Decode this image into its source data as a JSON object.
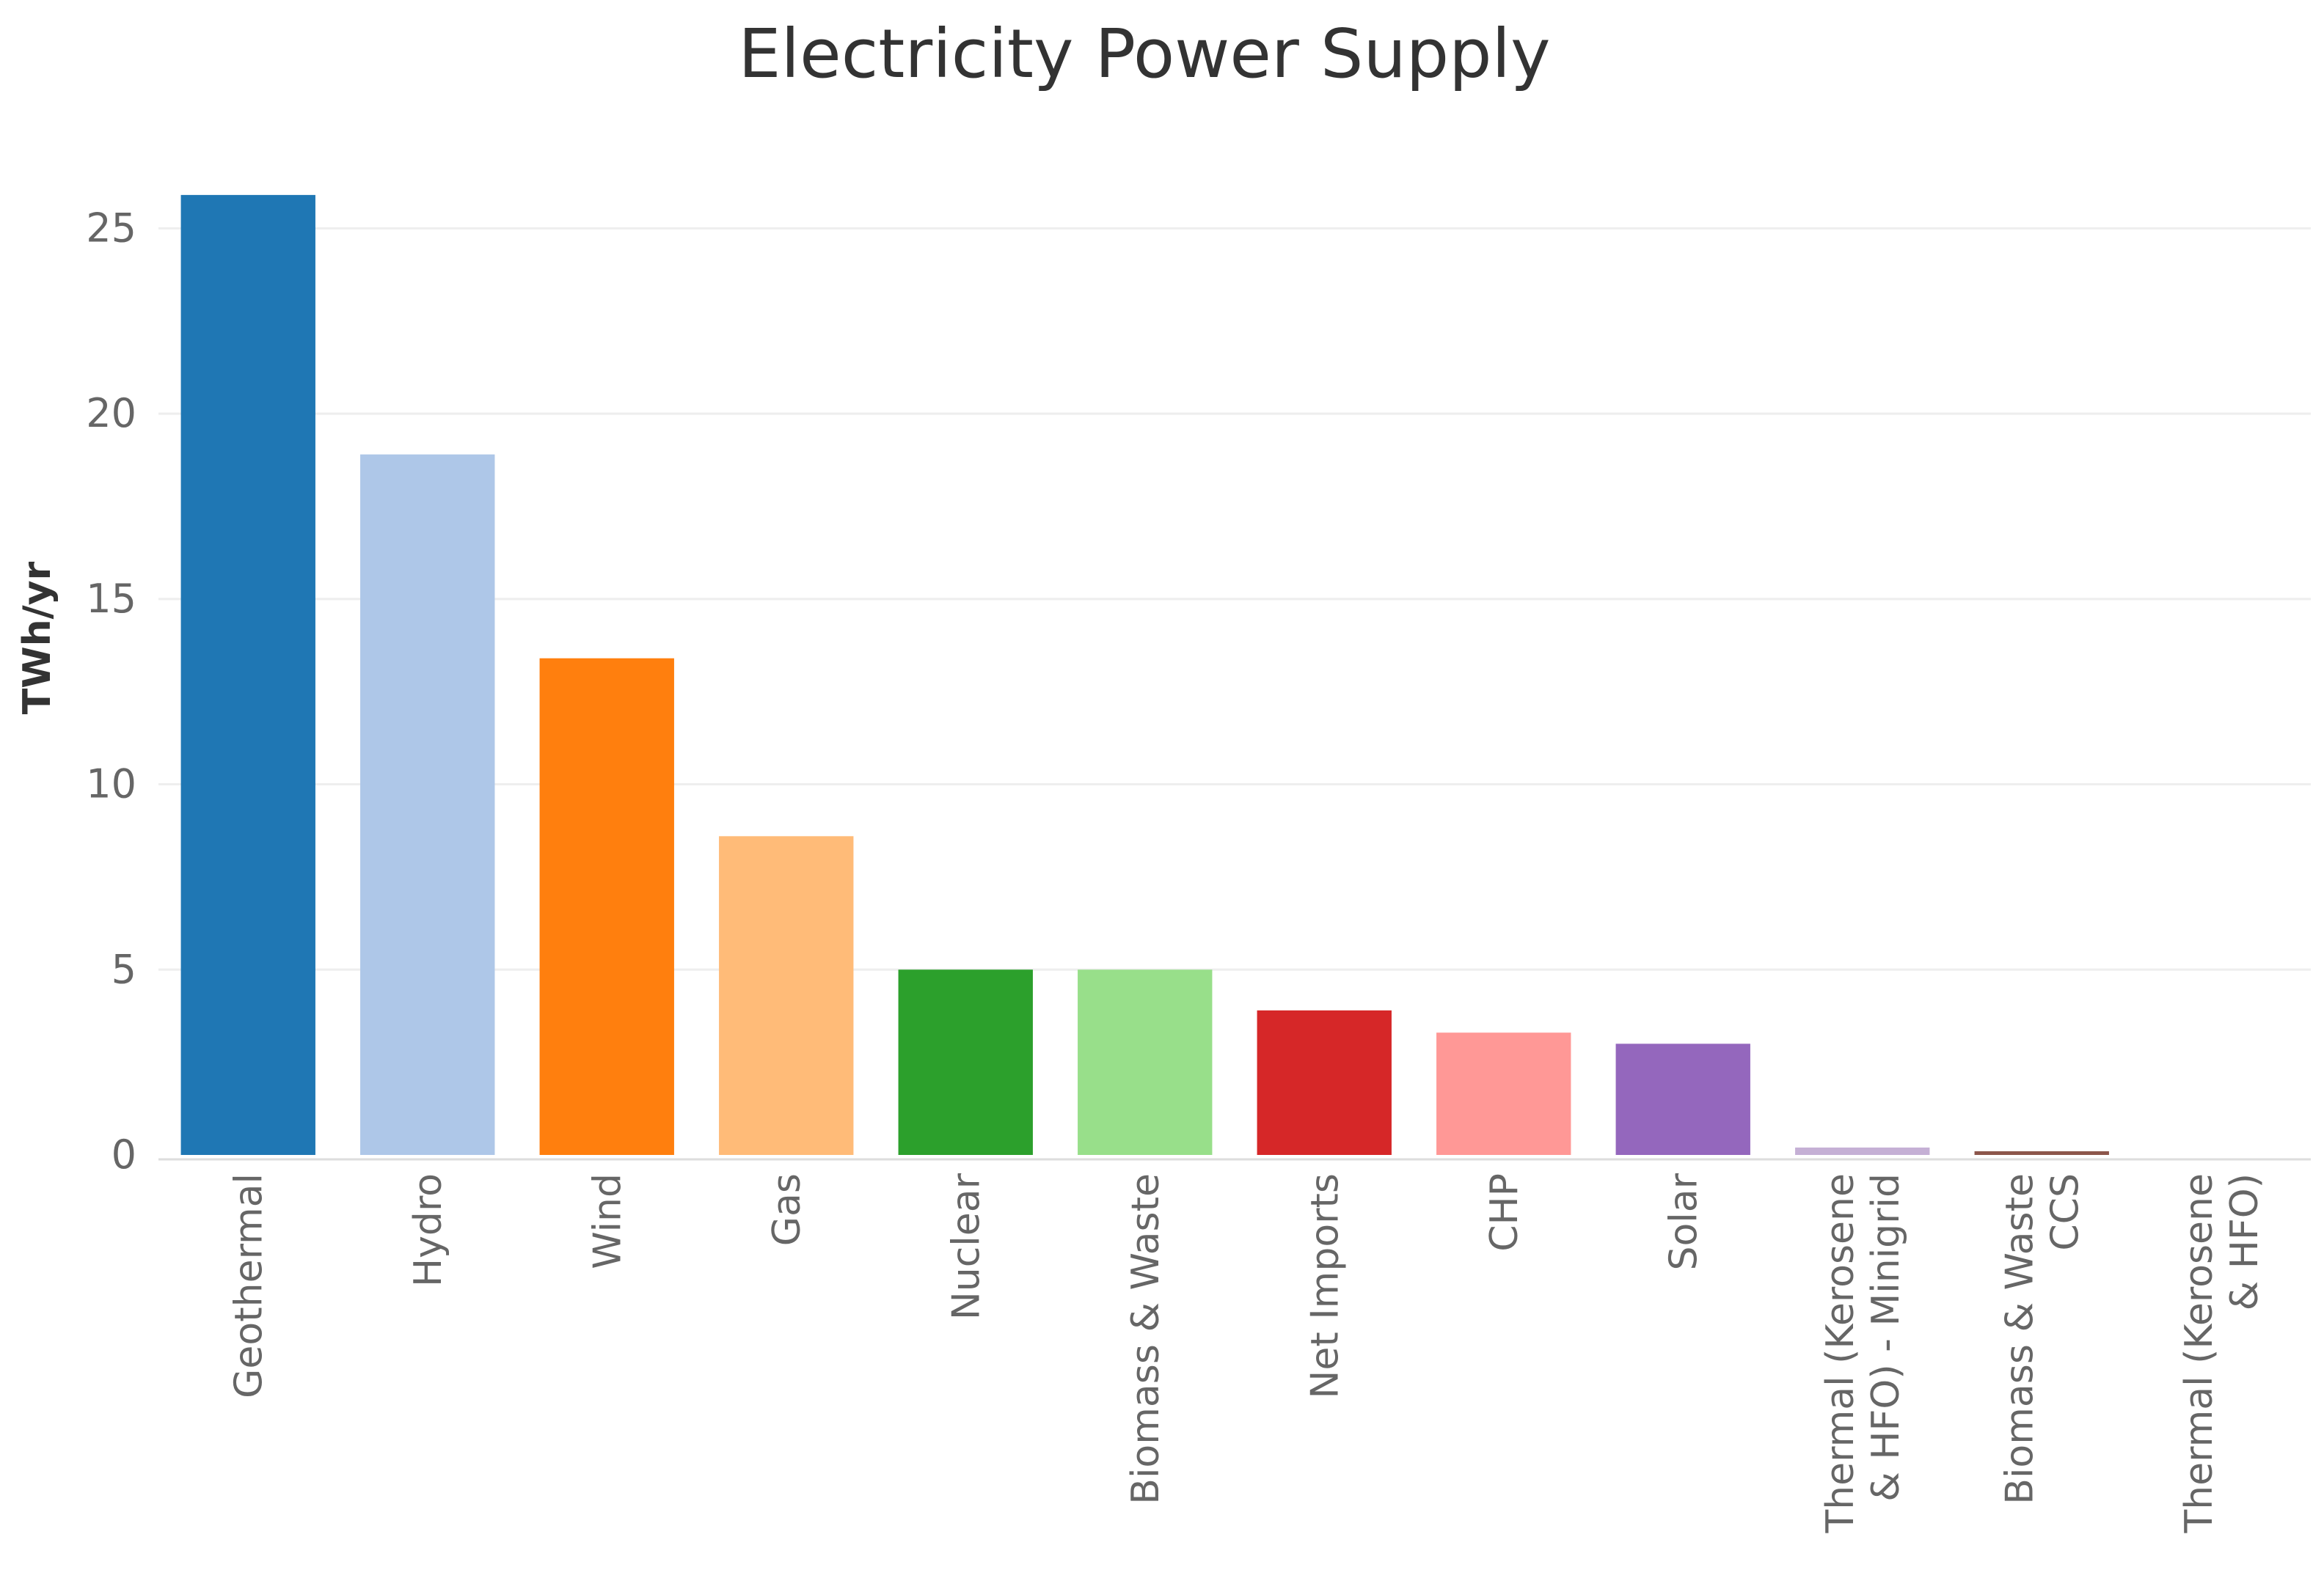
{
  "chart_data": {
    "type": "bar",
    "title": "Electricity Power Supply",
    "xlabel": "",
    "ylabel": "TWh/yr",
    "ylim": [
      0,
      27.5
    ],
    "yticks": [
      0,
      5,
      10,
      15,
      20,
      25
    ],
    "grid": true,
    "categories": [
      [
        "Geothermal"
      ],
      [
        "Hydro"
      ],
      [
        "Wind"
      ],
      [
        "Gas"
      ],
      [
        "Nuclear"
      ],
      [
        "Biomass & Waste"
      ],
      [
        "Net Imports"
      ],
      [
        "CHP"
      ],
      [
        "Solar"
      ],
      [
        "Thermal (Kerosene",
        "& HFO) - Minigrid"
      ],
      [
        "Biomass & Waste",
        "CCS"
      ],
      [
        "Thermal (Kerosene",
        "& HFO)"
      ]
    ],
    "values": [
      25.9,
      18.9,
      13.4,
      8.6,
      5.0,
      5.0,
      3.9,
      3.3,
      3.0,
      0.2,
      0.1,
      0.0
    ],
    "colors": [
      "#1f77b4",
      "#aec7e8",
      "#ff7f0e",
      "#ffbb78",
      "#2ca02c",
      "#98df8a",
      "#d62728",
      "#ff9896",
      "#9467bd",
      "#c5b0d5",
      "#8c564b",
      "#c49c94"
    ]
  }
}
